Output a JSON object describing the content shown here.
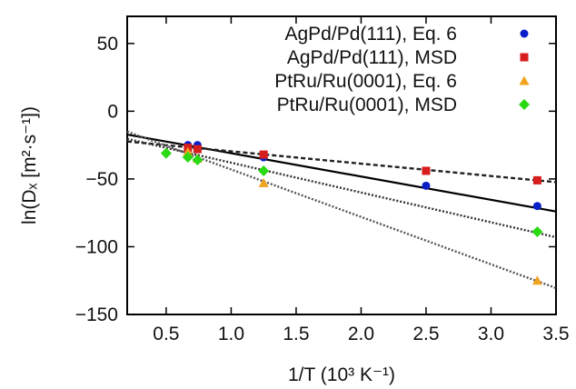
{
  "chart_data": {
    "type": "scatter",
    "title": "",
    "xlabel": "1/T (10³ K⁻¹)",
    "ylabel": "ln(Dₓ [m²·s⁻¹])",
    "xlim": [
      0.2,
      3.5
    ],
    "ylim": [
      -150,
      70
    ],
    "xticks": [
      0.5,
      1.0,
      1.5,
      2.0,
      2.5,
      3.0,
      3.5
    ],
    "xtick_labels": [
      "0.5",
      "1.0",
      "1.5",
      "2.0",
      "2.5",
      "3.0",
      "3.5"
    ],
    "yticks": [
      -150,
      -100,
      -50,
      0,
      50
    ],
    "ytick_labels": [
      "−150",
      "−100",
      "−50",
      "0",
      "50"
    ],
    "grid": false,
    "legend_position": "top-right",
    "series": [
      {
        "name": "AgPd/Pd(111), Eq. 6",
        "marker": "circle",
        "color": "#0b1fc8",
        "x": [
          0.667,
          0.741,
          1.25,
          2.5,
          3.356
        ],
        "y": [
          -25,
          -25,
          -34,
          -55,
          -70
        ],
        "fit": {
          "slope": -17.2,
          "intercept": -13.8,
          "style": "solid",
          "color": "#000000"
        }
      },
      {
        "name": "AgPd/Pd(111), MSD",
        "marker": "square",
        "color": "#d71d1d",
        "x": [
          0.667,
          0.741,
          1.25,
          2.5,
          3.356
        ],
        "y": [
          -27,
          -28,
          -32,
          -44,
          -51
        ],
        "fit": {
          "slope": -9.1,
          "intercept": -20.5,
          "style": "dashed",
          "color": "#222222"
        }
      },
      {
        "name": "PtRu/Ru(0001), Eq. 6",
        "marker": "triangle",
        "color": "#f0a31d",
        "x": [
          0.667,
          0.741,
          1.25,
          3.356
        ],
        "y": [
          -30,
          -35,
          -53,
          -125
        ],
        "fit": {
          "slope": -35.0,
          "intercept": -8.0,
          "style": "dotted",
          "color": "#555555"
        }
      },
      {
        "name": "PtRu/Ru(0001), MSD",
        "marker": "diamond",
        "color": "#29d912",
        "x": [
          0.5,
          0.667,
          0.741,
          1.25,
          3.356
        ],
        "y": [
          -31,
          -34,
          -36,
          -44,
          -89
        ],
        "fit": {
          "slope": -22.0,
          "intercept": -16.0,
          "style": "dotted",
          "color": "#333333"
        }
      }
    ]
  }
}
